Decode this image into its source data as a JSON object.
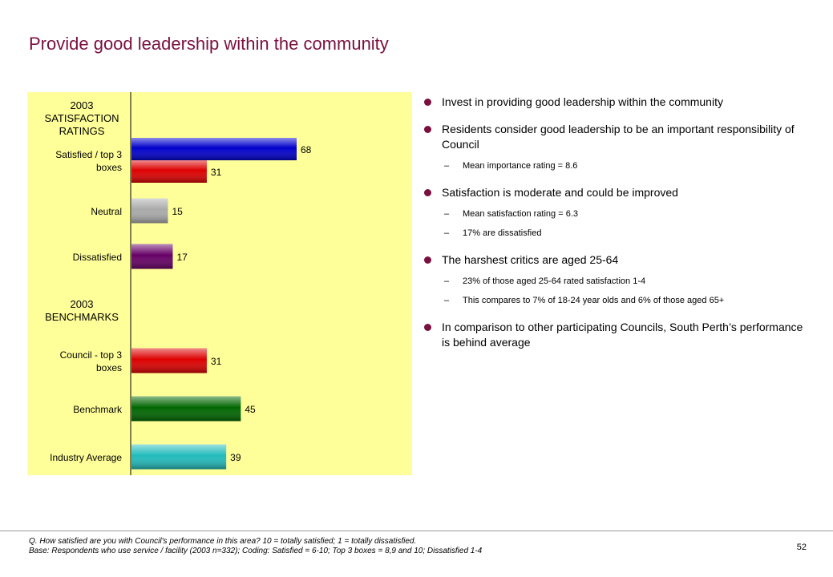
{
  "title": "Provide good leadership within the community",
  "chart_data": {
    "type": "bar",
    "orientation": "horizontal",
    "xlim": [
      0,
      100
    ],
    "groups": [
      {
        "heading": [
          "2003",
          "SATISFACTION",
          "RATINGS"
        ]
      },
      {
        "label": [
          "Satisfied / top 3",
          "boxes"
        ],
        "bars": [
          {
            "value": 68,
            "color": "#0000cc"
          },
          {
            "value": 31,
            "color": "#dd0000"
          }
        ]
      },
      {
        "label": [
          "Neutral"
        ],
        "bars": [
          {
            "value": 15,
            "color": "#aaaaaa"
          }
        ]
      },
      {
        "label": [
          "Dissatisfied"
        ],
        "bars": [
          {
            "value": 17,
            "color": "#660066"
          }
        ]
      },
      {
        "heading": [
          "2003",
          "BENCHMARKS"
        ]
      },
      {
        "label": [
          "Council - top 3",
          "boxes"
        ],
        "bars": [
          {
            "value": 31,
            "color": "#dd0000"
          }
        ]
      },
      {
        "label": [
          "Benchmark"
        ],
        "bars": [
          {
            "value": 45,
            "color": "#006600"
          }
        ]
      },
      {
        "label": [
          "Industry Average"
        ],
        "bars": [
          {
            "value": 39,
            "color": "#22bbbb"
          }
        ]
      }
    ]
  },
  "bullets": [
    {
      "text": "Invest in providing good leadership within the community",
      "subs": []
    },
    {
      "text": "Residents consider good leadership to be an important responsibility of Council",
      "subs": [
        "Mean importance rating = 8.6"
      ]
    },
    {
      "text": "Satisfaction is moderate and could be improved",
      "subs": [
        "Mean satisfaction rating = 6.3",
        "17% are dissatisfied"
      ]
    },
    {
      "text": "The harshest critics are aged 25-64",
      "subs": [
        "23% of those aged 25-64 rated satisfaction 1-4",
        "This compares to 7% of 18-24 year olds and 6% of those aged 65+"
      ]
    },
    {
      "text": "In comparison to other participating Councils, South Perth’s performance is behind average",
      "subs": []
    }
  ],
  "sub_dash": "–",
  "footer": {
    "line1": "Q. How satisfied are you with Council's performance in this area?  10 = totally satisfied; 1 = totally dissatisfied.",
    "line2": "Base: Respondents who use service / facility (2003 n=332);  Coding: Satisfied = 6-10; Top 3 boxes = 8,9 and 10; Dissatisfied 1-4"
  },
  "page_number": "52"
}
